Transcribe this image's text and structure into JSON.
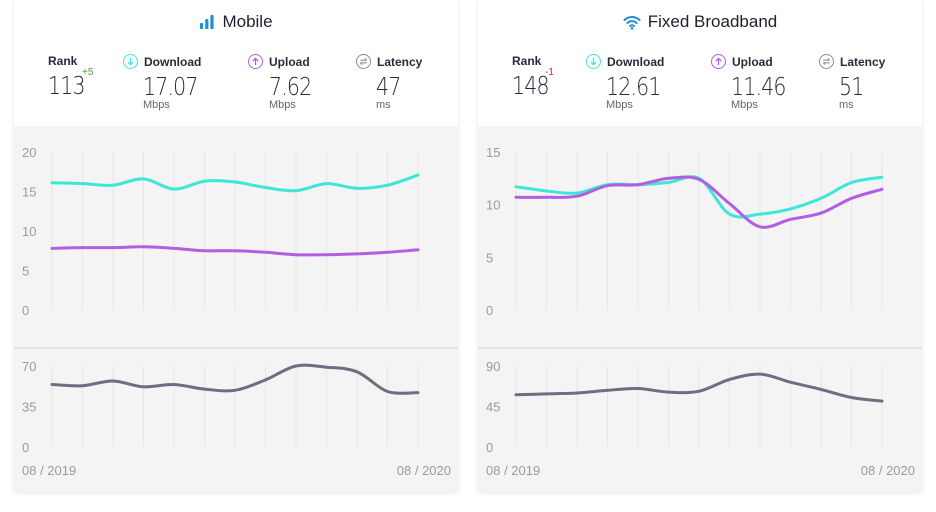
{
  "colors": {
    "download": "#3ee6d6",
    "upload": "#b15ee3",
    "latency": "#6e6e80",
    "rank_up": "#3aa33a",
    "rank_down": "#d0253b",
    "accent": "#1e8fd8"
  },
  "mobile": {
    "title": "Mobile",
    "icon": "signal-bars-icon",
    "rank": {
      "label": "Rank",
      "value": "113",
      "delta": "+5"
    },
    "download": {
      "label": "Download",
      "value": "17.07",
      "unit": "Mbps"
    },
    "upload": {
      "label": "Upload",
      "value": "7.62",
      "unit": "Mbps"
    },
    "latency": {
      "label": "Latency",
      "value": "47",
      "unit": "ms"
    },
    "x_start": "08 / 2019",
    "x_end": "08 / 2020"
  },
  "fixed": {
    "title": "Fixed Broadband",
    "icon": "wifi-icon",
    "rank": {
      "label": "Rank",
      "value": "148",
      "delta": "-1"
    },
    "download": {
      "label": "Download",
      "value": "12.61",
      "unit": "Mbps"
    },
    "upload": {
      "label": "Upload",
      "value": "11.46",
      "unit": "Mbps"
    },
    "latency": {
      "label": "Latency",
      "value": "51",
      "unit": "ms"
    },
    "x_start": "08 / 2019",
    "x_end": "08 / 2020"
  },
  "chart_data": [
    {
      "type": "line",
      "panel": "mobile",
      "subplot": "speed",
      "x": [
        "08/2019",
        "09/2019",
        "10/2019",
        "11/2019",
        "12/2019",
        "01/2020",
        "02/2020",
        "03/2020",
        "04/2020",
        "05/2020",
        "06/2020",
        "07/2020",
        "08/2020"
      ],
      "yticks": [
        0,
        5,
        10,
        15,
        20
      ],
      "ylim": [
        0,
        20
      ],
      "series": [
        {
          "key": "download",
          "values": [
            16.1,
            16.0,
            15.8,
            16.6,
            15.3,
            16.3,
            16.2,
            15.5,
            15.1,
            16.0,
            15.4,
            15.8,
            17.07
          ]
        },
        {
          "key": "upload",
          "values": [
            7.8,
            7.9,
            7.9,
            8.0,
            7.8,
            7.5,
            7.5,
            7.3,
            7.0,
            7.0,
            7.1,
            7.3,
            7.62
          ]
        }
      ]
    },
    {
      "type": "line",
      "panel": "mobile",
      "subplot": "latency",
      "x": [
        "08/2019",
        "09/2019",
        "10/2019",
        "11/2019",
        "12/2019",
        "01/2020",
        "02/2020",
        "03/2020",
        "04/2020",
        "05/2020",
        "06/2020",
        "07/2020",
        "08/2020"
      ],
      "yticks": [
        0,
        35,
        70
      ],
      "ylim": [
        0,
        70
      ],
      "series": [
        {
          "key": "latency",
          "values": [
            54,
            53,
            57,
            52,
            54,
            50,
            49,
            58,
            70,
            69,
            65,
            48,
            47
          ]
        }
      ]
    },
    {
      "type": "line",
      "panel": "fixed",
      "subplot": "speed",
      "x": [
        "08/2019",
        "09/2019",
        "10/2019",
        "11/2019",
        "12/2019",
        "01/2020",
        "02/2020",
        "03/2020",
        "04/2020",
        "05/2020",
        "06/2020",
        "07/2020",
        "08/2020"
      ],
      "yticks": [
        0,
        5,
        10,
        15
      ],
      "ylim": [
        0,
        15
      ],
      "series": [
        {
          "key": "download",
          "values": [
            11.7,
            11.3,
            11.1,
            11.9,
            11.9,
            12.1,
            12.5,
            9.1,
            9.1,
            9.6,
            10.6,
            12.1,
            12.61
          ]
        },
        {
          "key": "upload",
          "values": [
            10.7,
            10.7,
            10.8,
            11.8,
            11.9,
            12.5,
            12.4,
            10.1,
            7.9,
            8.6,
            9.2,
            10.6,
            11.46
          ]
        }
      ]
    },
    {
      "type": "line",
      "panel": "fixed",
      "subplot": "latency",
      "x": [
        "08/2019",
        "09/2019",
        "10/2019",
        "11/2019",
        "12/2019",
        "01/2020",
        "02/2020",
        "03/2020",
        "04/2020",
        "05/2020",
        "06/2020",
        "07/2020",
        "08/2020"
      ],
      "yticks": [
        0,
        45,
        90
      ],
      "ylim": [
        0,
        90
      ],
      "series": [
        {
          "key": "latency",
          "values": [
            58,
            59,
            60,
            63,
            65,
            61,
            62,
            75,
            81,
            72,
            64,
            55,
            51
          ]
        }
      ]
    }
  ]
}
